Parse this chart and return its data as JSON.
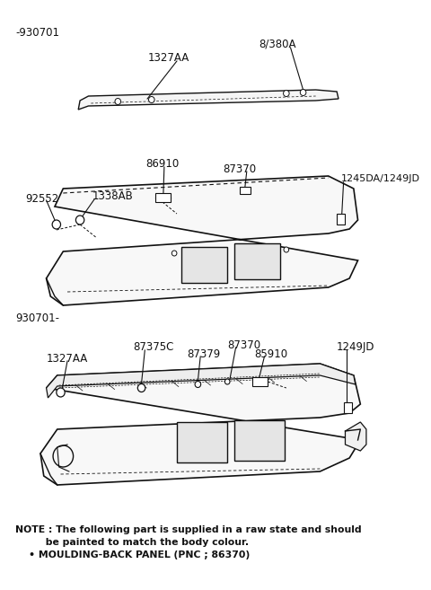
{
  "bg_color": "#ffffff",
  "fig_width": 4.8,
  "fig_height": 6.57,
  "dpi": 100,
  "note_text1": "NOTE : The following part is supplied in a raw state and should",
  "note_text2": "         be painted to match the body colour.",
  "note_text3": "    • MOULDING-BACK PANEL (PNC ; 86370)"
}
